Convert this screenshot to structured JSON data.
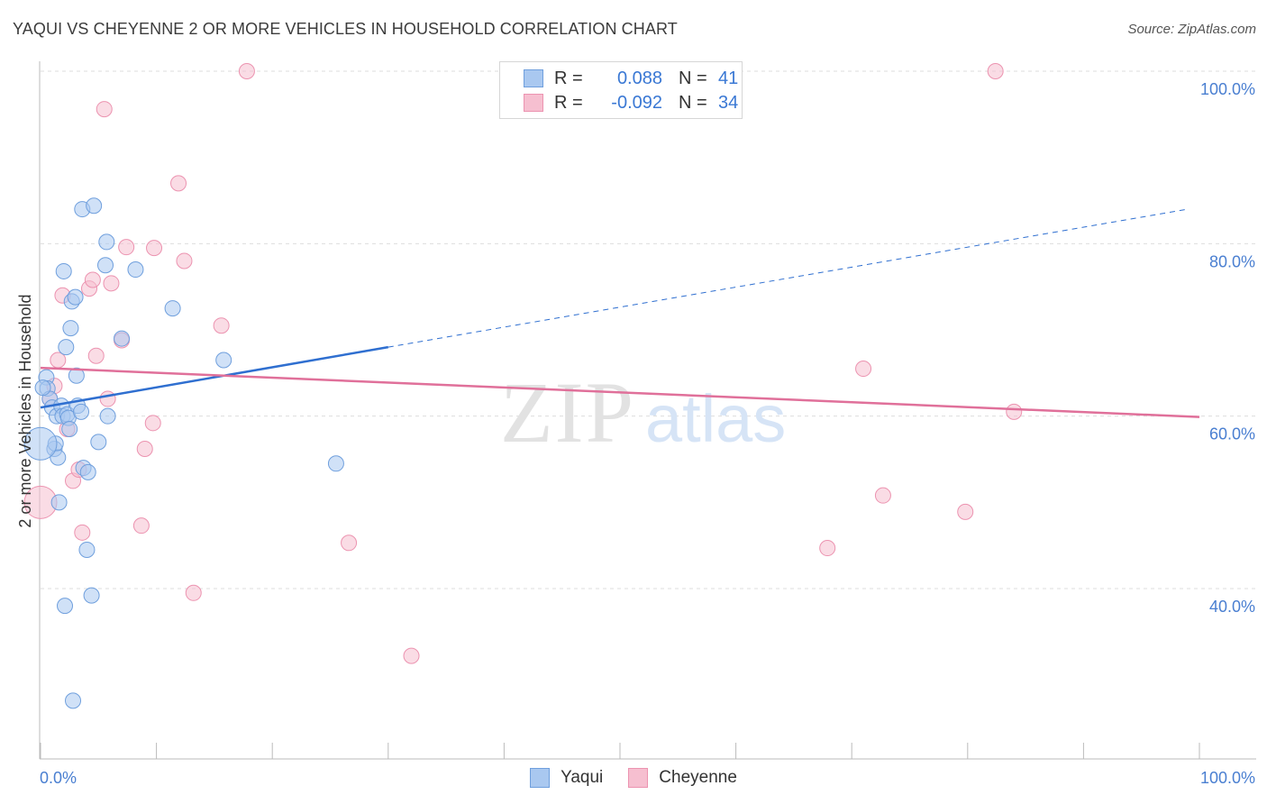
{
  "header": {
    "title": "YAQUI VS CHEYENNE 2 OR MORE VEHICLES IN HOUSEHOLD CORRELATION CHART",
    "source": "Source: ZipAtlas.com"
  },
  "legend": {
    "rows": [
      {
        "r_label": "R =",
        "r_value": "0.088",
        "n_label": "N =",
        "n_value": "41"
      },
      {
        "r_label": "R =",
        "r_value": "-0.092",
        "n_label": "N =",
        "n_value": "34"
      }
    ]
  },
  "bottom_legend": {
    "series1": "Yaqui",
    "series2": "Cheyenne"
  },
  "watermark": {
    "zip": "ZIP",
    "atlas": "atlas"
  },
  "colors": {
    "yaqui_fill": "#a9c8f0",
    "yaqui_stroke": "#6f9fdd",
    "yaqui_line": "#2f6fd0",
    "cheyenne_fill": "#f6bfd0",
    "cheyenne_stroke": "#ec93b0",
    "cheyenne_line": "#e0709a",
    "tick_text": "#4a7fd1",
    "grid": "#dddddd"
  },
  "chart_data": {
    "type": "scatter",
    "title": "YAQUI VS CHEYENNE 2 OR MORE VEHICLES IN HOUSEHOLD CORRELATION CHART",
    "xlabel": "",
    "ylabel": "2 or more Vehicles in Household",
    "xlim": [
      0,
      100
    ],
    "ylim": [
      20,
      102
    ],
    "x_tick_labels": [
      "0.0%",
      "100.0%"
    ],
    "y_ticks": [
      40,
      60,
      80,
      100
    ],
    "y_tick_labels": [
      "40.0%",
      "60.0%",
      "80.0%",
      "100.0%"
    ],
    "legend_position": "top-center",
    "series": [
      {
        "name": "Yaqui",
        "r": 0.088,
        "n": 41,
        "trend": {
          "x0": 0,
          "y0": 61.0,
          "x1": 30,
          "y1": 68.0,
          "dash_to_x": 99,
          "dash_to_y": 84.0
        },
        "points": [
          {
            "x": 0.5,
            "y": 64.5
          },
          {
            "x": 0.6,
            "y": 63.2
          },
          {
            "x": 0.8,
            "y": 62.0
          },
          {
            "x": 1.0,
            "y": 61.0
          },
          {
            "x": 1.2,
            "y": 56.2
          },
          {
            "x": 1.3,
            "y": 56.8
          },
          {
            "x": 1.4,
            "y": 60.0
          },
          {
            "x": 1.5,
            "y": 55.2
          },
          {
            "x": 1.6,
            "y": 50.0
          },
          {
            "x": 1.8,
            "y": 61.2
          },
          {
            "x": 1.9,
            "y": 60.0
          },
          {
            "x": 2.0,
            "y": 76.8
          },
          {
            "x": 2.1,
            "y": 38.0
          },
          {
            "x": 2.2,
            "y": 68.0
          },
          {
            "x": 2.3,
            "y": 60.2
          },
          {
            "x": 2.4,
            "y": 59.8
          },
          {
            "x": 2.5,
            "y": 58.5
          },
          {
            "x": 2.6,
            "y": 70.2
          },
          {
            "x": 2.7,
            "y": 73.3
          },
          {
            "x": 2.8,
            "y": 27.0
          },
          {
            "x": 3.0,
            "y": 73.8
          },
          {
            "x": 3.1,
            "y": 64.7
          },
          {
            "x": 3.2,
            "y": 61.2
          },
          {
            "x": 3.5,
            "y": 60.5
          },
          {
            "x": 3.6,
            "y": 84.0
          },
          {
            "x": 3.7,
            "y": 54.0
          },
          {
            "x": 4.0,
            "y": 44.5
          },
          {
            "x": 4.1,
            "y": 53.5
          },
          {
            "x": 4.4,
            "y": 39.2
          },
          {
            "x": 4.6,
            "y": 84.4
          },
          {
            "x": 5.0,
            "y": 57.0
          },
          {
            "x": 5.6,
            "y": 77.5
          },
          {
            "x": 5.7,
            "y": 80.2
          },
          {
            "x": 5.8,
            "y": 60.0
          },
          {
            "x": 7.0,
            "y": 69.0
          },
          {
            "x": 8.2,
            "y": 77.0
          },
          {
            "x": 11.4,
            "y": 72.5
          },
          {
            "x": 15.8,
            "y": 66.5
          },
          {
            "x": 25.5,
            "y": 54.5
          },
          {
            "x": 0.0,
            "y": 56.8
          },
          {
            "x": 0.2,
            "y": 63.3
          }
        ]
      },
      {
        "name": "Cheyenne",
        "r": -0.092,
        "n": 34,
        "trend": {
          "x0": 0,
          "y0": 65.6,
          "x1": 100,
          "y1": 59.9
        },
        "points": [
          {
            "x": 0.0,
            "y": 50.0
          },
          {
            "x": 0.8,
            "y": 62.0
          },
          {
            "x": 1.2,
            "y": 63.5
          },
          {
            "x": 1.5,
            "y": 66.5
          },
          {
            "x": 1.9,
            "y": 74.0
          },
          {
            "x": 2.3,
            "y": 58.5
          },
          {
            "x": 2.8,
            "y": 52.5
          },
          {
            "x": 3.3,
            "y": 53.8
          },
          {
            "x": 3.6,
            "y": 46.5
          },
          {
            "x": 4.2,
            "y": 74.8
          },
          {
            "x": 4.5,
            "y": 75.8
          },
          {
            "x": 4.8,
            "y": 67.0
          },
          {
            "x": 5.5,
            "y": 95.6
          },
          {
            "x": 5.8,
            "y": 62.0
          },
          {
            "x": 6.1,
            "y": 75.4
          },
          {
            "x": 7.0,
            "y": 68.8
          },
          {
            "x": 7.4,
            "y": 79.6
          },
          {
            "x": 8.7,
            "y": 47.3
          },
          {
            "x": 9.0,
            "y": 56.2
          },
          {
            "x": 9.7,
            "y": 59.2
          },
          {
            "x": 9.8,
            "y": 79.5
          },
          {
            "x": 11.9,
            "y": 87.0
          },
          {
            "x": 12.4,
            "y": 78.0
          },
          {
            "x": 13.2,
            "y": 39.5
          },
          {
            "x": 15.6,
            "y": 70.5
          },
          {
            "x": 17.8,
            "y": 100.0
          },
          {
            "x": 26.6,
            "y": 45.3
          },
          {
            "x": 32.0,
            "y": 32.2
          },
          {
            "x": 67.9,
            "y": 44.7
          },
          {
            "x": 71.0,
            "y": 65.5
          },
          {
            "x": 72.7,
            "y": 50.8
          },
          {
            "x": 79.8,
            "y": 48.9
          },
          {
            "x": 82.4,
            "y": 100.0
          },
          {
            "x": 84.0,
            "y": 60.5
          }
        ]
      }
    ]
  }
}
